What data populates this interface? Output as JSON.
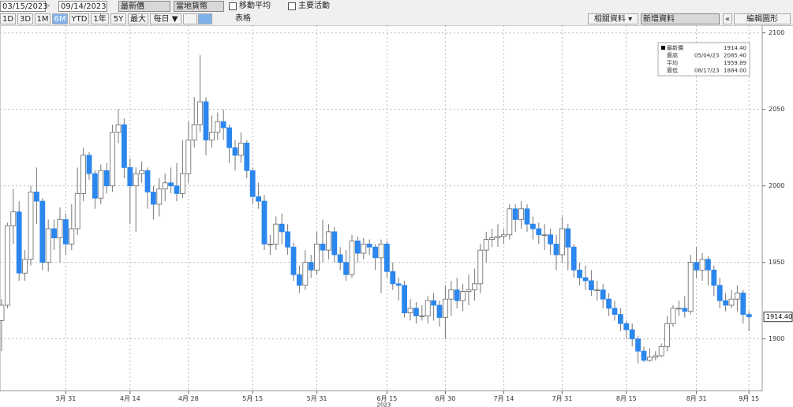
{
  "toolbar": {
    "start_date": "03/15/2023",
    "end_date": "09/14/2023",
    "field": "最新價",
    "currency": "當地貨幣",
    "checkboxes": [
      "移動平均",
      "主要活動"
    ],
    "ranges": [
      "1D",
      "3D",
      "1M",
      "6M",
      "YTD",
      "1年",
      "5Y",
      "最大"
    ],
    "frequency": "每日",
    "table": "表格",
    "related": "相關資料",
    "add_data": "新增資料",
    "edit": "編輯圖形"
  },
  "chart_data": {
    "type": "candlestick",
    "categories": [
      null,
      null,
      null,
      null,
      null,
      null,
      null,
      null,
      null,
      null,
      null,
      "3月 31",
      null,
      null,
      null,
      null,
      null,
      null,
      null,
      null,
      null,
      null,
      "4月 14",
      null,
      null,
      null,
      null,
      null,
      null,
      null,
      null,
      null,
      "4月 28",
      null,
      null,
      null,
      null,
      null,
      null,
      null,
      null,
      null,
      null,
      "5月 15",
      null,
      null,
      null,
      null,
      null,
      null,
      null,
      null,
      null,
      null,
      "5月 31",
      null,
      null,
      null,
      null,
      null,
      null,
      null,
      null,
      null,
      null,
      null,
      "6月 15",
      null,
      null,
      null,
      null,
      null,
      null,
      null,
      null,
      null,
      "6月 30",
      null,
      null,
      null,
      null,
      null,
      null,
      null,
      null,
      null,
      "7月 14",
      null,
      null,
      null,
      null,
      null,
      null,
      null,
      null,
      null,
      "7月 31",
      null,
      null,
      null,
      null,
      null,
      null,
      null,
      null,
      null,
      null,
      "8月 15",
      null,
      null,
      null,
      null,
      null,
      null,
      null,
      null,
      null,
      null,
      null,
      "8月 31",
      null,
      null,
      null,
      null,
      null,
      null,
      null,
      null,
      "9月 15"
    ],
    "year_label": "2023",
    "open": [
      1912,
      1922,
      1974,
      1983,
      1943,
      1952,
      1996,
      1990,
      1950,
      1972,
      1966,
      1978,
      1962,
      1972,
      1995,
      2020,
      2008,
      1992,
      2010,
      2000,
      2035,
      2040,
      2012,
      2000,
      2008,
      2010,
      1996,
      1988,
      1998,
      2002,
      2000,
      1995,
      2008,
      2030,
      2040,
      2055,
      2030,
      2035,
      2042,
      2038,
      2025,
      2020,
      2028,
      2010,
      1993,
      1990,
      1962,
      1962,
      1975,
      1970,
      1960,
      1942,
      1935,
      1950,
      1945,
      1962,
      1958,
      1970,
      1955,
      1950,
      1942,
      1964,
      1956,
      1962,
      1960,
      1953,
      1962,
      1944,
      1936,
      1935,
      1917,
      1920,
      1915,
      1915,
      1925,
      1922,
      1914,
      1926,
      1932,
      1925,
      1931,
      1932,
      1936,
      1958,
      1965,
      1966,
      1967,
      1968,
      1985,
      1978,
      1985,
      1975,
      1972,
      1968,
      1968,
      1962,
      1955,
      1972,
      1960,
      1945,
      1940,
      1938,
      1932,
      1932,
      1926,
      1920,
      1916,
      1910,
      1906,
      1900,
      1892,
      1886,
      1888,
      1889,
      1895,
      1910,
      1920,
      1920,
      1918,
      1950,
      1945,
      1952,
      1945,
      1935,
      1925,
      1922,
      1926,
      1930,
      1916
    ],
    "high": [
      1926,
      1976,
      1998,
      1990,
      1958,
      2000,
      2012,
      1992,
      1978,
      1978,
      1986,
      1982,
      1988,
      2012,
      2025,
      2022,
      2010,
      2014,
      2015,
      2040,
      2050,
      2044,
      2018,
      2012,
      2016,
      2012,
      2000,
      2005,
      2008,
      2012,
      2015,
      2030,
      2042,
      2058,
      2085.4,
      2058,
      2046,
      2048,
      2050,
      2040,
      2030,
      2035,
      2030,
      2012,
      2002,
      1994,
      1968,
      1980,
      1982,
      1975,
      1963,
      1948,
      1958,
      1955,
      1970,
      1978,
      1975,
      1973,
      1960,
      1958,
      1968,
      1967,
      1966,
      1965,
      1962,
      1965,
      1964,
      1950,
      1940,
      1938,
      1926,
      1924,
      1922,
      1928,
      1930,
      1925,
      1935,
      1938,
      1940,
      1936,
      1942,
      1946,
      1962,
      1970,
      1972,
      1975,
      1972,
      1988,
      1988,
      1990,
      1988,
      1980,
      1976,
      1975,
      1972,
      1968,
      1980,
      1975,
      1962,
      1950,
      1948,
      1945,
      1938,
      1936,
      1930,
      1925,
      1920,
      1912,
      1910,
      1902,
      1895,
      1894,
      1892,
      1897,
      1915,
      1922,
      1925,
      1928,
      1955,
      1960,
      1956,
      1954,
      1948,
      1940,
      1930,
      1932,
      1935,
      1932,
      1918
    ],
    "low": [
      1892,
      1920,
      1962,
      1938,
      1938,
      1948,
      1975,
      1945,
      1944,
      1958,
      1950,
      1955,
      1958,
      1968,
      1990,
      2004,
      1985,
      1988,
      1995,
      1996,
      2028,
      2005,
      1975,
      1970,
      2002,
      1985,
      1978,
      1980,
      1990,
      1995,
      1990,
      1992,
      2002,
      2025,
      2035,
      2020,
      2025,
      2030,
      2030,
      2015,
      2010,
      2015,
      2005,
      1988,
      1985,
      1958,
      1955,
      1958,
      1962,
      1955,
      1938,
      1930,
      1932,
      1940,
      1942,
      1950,
      1952,
      1950,
      1945,
      1938,
      1940,
      1950,
      1952,
      1955,
      1945,
      1930,
      1940,
      1932,
      1925,
      1914,
      1912,
      1910,
      1912,
      1910,
      1912,
      1908,
      1900,
      1915,
      1920,
      1918,
      1922,
      1925,
      1930,
      1950,
      1960,
      1960,
      1962,
      1965,
      1970,
      1972,
      1970,
      1965,
      1962,
      1958,
      1955,
      1945,
      1950,
      1945,
      1940,
      1935,
      1932,
      1928,
      1925,
      1920,
      1915,
      1912,
      1905,
      1900,
      1895,
      1884,
      1885,
      1885,
      1886,
      1888,
      1892,
      1908,
      1915,
      1914,
      1916,
      1940,
      1938,
      1935,
      1928,
      1920,
      1918,
      1920,
      1918,
      1910,
      1905
    ],
    "close": [
      1922,
      1974,
      1983,
      1943,
      1952,
      1996,
      1990,
      1950,
      1972,
      1966,
      1978,
      1962,
      1972,
      1995,
      2020,
      2008,
      1992,
      2010,
      2000,
      2035,
      2040,
      2012,
      2000,
      2008,
      2010,
      1996,
      1988,
      1998,
      2002,
      2000,
      1995,
      2008,
      2030,
      2040,
      2055,
      2030,
      2035,
      2042,
      2038,
      2025,
      2020,
      2028,
      2010,
      1993,
      1990,
      1962,
      1962,
      1975,
      1970,
      1960,
      1942,
      1935,
      1950,
      1945,
      1962,
      1958,
      1970,
      1955,
      1950,
      1942,
      1964,
      1956,
      1962,
      1960,
      1953,
      1962,
      1944,
      1936,
      1935,
      1917,
      1920,
      1915,
      1915,
      1925,
      1922,
      1914,
      1926,
      1932,
      1925,
      1931,
      1932,
      1936,
      1958,
      1965,
      1966,
      1967,
      1968,
      1985,
      1978,
      1985,
      1975,
      1972,
      1968,
      1968,
      1962,
      1955,
      1972,
      1960,
      1945,
      1940,
      1938,
      1932,
      1932,
      1926,
      1920,
      1916,
      1910,
      1906,
      1900,
      1892,
      1886,
      1888,
      1889,
      1895,
      1910,
      1920,
      1920,
      1918,
      1950,
      1945,
      1952,
      1945,
      1935,
      1925,
      1922,
      1926,
      1930,
      1916,
      1914.4
    ],
    "up_color": "#ffffff",
    "down_color": "#2b86ee",
    "ylim": [
      1866,
      2105
    ],
    "yticks": [
      1900,
      1950,
      2000,
      2050,
      2100
    ],
    "grid": true,
    "last_tag": "1914.40",
    "stats": [
      {
        "label": "最新價",
        "value": "1914.40"
      },
      {
        "label": "最高",
        "date": "05/04/23",
        "value": "2085.40"
      },
      {
        "label": "平均",
        "value": "1959.89"
      },
      {
        "label": "最低",
        "date": "08/17/23",
        "value": "1884.00"
      }
    ]
  }
}
